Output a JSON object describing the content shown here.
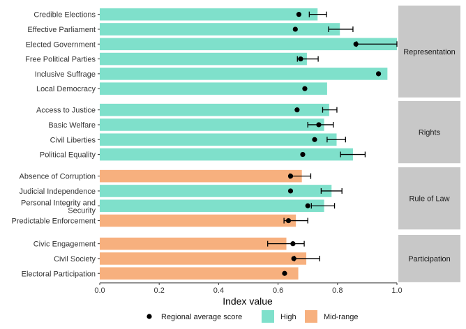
{
  "chart_data": {
    "type": "bar",
    "orientation": "horizontal",
    "xlabel": "Index value",
    "xlim": [
      0,
      1
    ],
    "x_ticks": [
      "0.0",
      "0.2",
      "0.4",
      "0.6",
      "0.8",
      "1.0"
    ],
    "x_tick_values": [
      0,
      0.2,
      0.4,
      0.6,
      0.8,
      1.0
    ],
    "grid": false,
    "legend_position": "bottom",
    "legend": [
      {
        "key": "dot",
        "label": "Regional average score"
      },
      {
        "key": "High",
        "label": "High"
      },
      {
        "key": "Mid-range",
        "label": "Mid-range"
      }
    ],
    "colors": {
      "High": "#7fe0cb",
      "Mid-range": "#f7b07e",
      "dot": "#000000",
      "strip": "#c8c8c8"
    },
    "facets": [
      {
        "name": "Representation",
        "items": [
          {
            "label": "Credible Elections",
            "value": 0.733,
            "level": "High",
            "avg": 0.67,
            "err": [
              0.705,
              0.763
            ]
          },
          {
            "label": "Effective Parliament",
            "value": 0.808,
            "level": "High",
            "avg": 0.658,
            "err": [
              0.77,
              0.852
            ]
          },
          {
            "label": "Elected Government",
            "value": 1.0,
            "level": "High",
            "avg": 0.862,
            "err": [
              0.865,
              1.0
            ]
          },
          {
            "label": "Free Political Parties",
            "value": 0.697,
            "level": "High",
            "avg": 0.676,
            "err": [
              0.665,
              0.735
            ]
          },
          {
            "label": "Inclusive Suffrage",
            "value": 0.968,
            "level": "High",
            "avg": 0.938,
            "err": null
          },
          {
            "label": "Local Democracy",
            "value": 0.765,
            "level": "High",
            "avg": 0.69,
            "err": null
          }
        ]
      },
      {
        "name": "Rights",
        "items": [
          {
            "label": "Access to Justice",
            "value": 0.772,
            "level": "High",
            "avg": 0.664,
            "err": [
              0.75,
              0.798
            ]
          },
          {
            "label": "Basic Welfare",
            "value": 0.755,
            "level": "High",
            "avg": 0.737,
            "err": [
              0.7,
              0.786
            ]
          },
          {
            "label": "Civil Liberties",
            "value": 0.797,
            "level": "High",
            "avg": 0.723,
            "err": [
              0.765,
              0.827
            ]
          },
          {
            "label": "Political Equality",
            "value": 0.852,
            "level": "High",
            "avg": 0.683,
            "err": [
              0.81,
              0.893
            ]
          }
        ]
      },
      {
        "name": "Rule of Law",
        "items": [
          {
            "label": "Absence of Corruption",
            "value": 0.68,
            "level": "Mid-range",
            "avg": 0.642,
            "err": [
              0.64,
              0.71
            ]
          },
          {
            "label": "Judicial Independence",
            "value": 0.78,
            "level": "High",
            "avg": 0.642,
            "err": [
              0.745,
              0.815
            ]
          },
          {
            "label": "Personal Integrity and Security",
            "value": 0.755,
            "level": "High",
            "avg": 0.7,
            "err": [
              0.712,
              0.79
            ]
          },
          {
            "label": "Predictable Enforcement",
            "value": 0.66,
            "level": "Mid-range",
            "avg": 0.635,
            "err": [
              0.62,
              0.7
            ]
          }
        ]
      },
      {
        "name": "Participation",
        "items": [
          {
            "label": "Civic Engagement",
            "value": 0.628,
            "level": "Mid-range",
            "avg": 0.65,
            "err": [
              0.565,
              0.688
            ]
          },
          {
            "label": "Civil Society",
            "value": 0.695,
            "level": "Mid-range",
            "avg": 0.653,
            "err": [
              0.655,
              0.74
            ]
          },
          {
            "label": "Electoral Participation",
            "value": 0.668,
            "level": "Mid-range",
            "avg": 0.622,
            "err": null
          }
        ]
      }
    ]
  }
}
